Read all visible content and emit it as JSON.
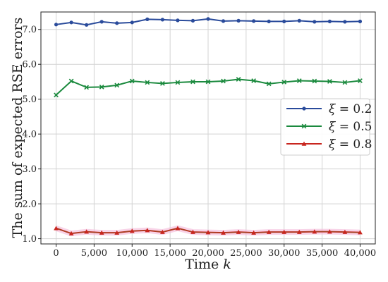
{
  "chart_data": {
    "type": "line",
    "xlabel": "Time k",
    "ylabel": "The sum of expected RSE errors",
    "xlim": [
      -2000,
      42000
    ],
    "ylim": [
      0.85,
      7.5
    ],
    "grid": true,
    "legend_position": "center-right",
    "x": [
      0,
      2000,
      4000,
      6000,
      8000,
      10000,
      12000,
      14000,
      16000,
      18000,
      20000,
      22000,
      24000,
      26000,
      28000,
      30000,
      32000,
      34000,
      36000,
      38000,
      40000
    ],
    "x_ticks": [
      0,
      5000,
      10000,
      15000,
      20000,
      25000,
      30000,
      35000,
      40000
    ],
    "x_tick_labels": [
      "0",
      "5,000",
      "10,000",
      "15,000",
      "20,000",
      "25,000",
      "30,000",
      "35,000",
      "40,000"
    ],
    "y_ticks": [
      1.0,
      2.0,
      3.0,
      4.0,
      5.0,
      6.0,
      7.0
    ],
    "y_tick_labels": [
      "1.0",
      "2.0",
      "3.0",
      "4.0",
      "5.0",
      "6.0",
      "7.0"
    ],
    "series": [
      {
        "name": "ξ = 0.2",
        "color": "#2a4b9b",
        "marker": "circle",
        "values": [
          7.14,
          7.2,
          7.13,
          7.22,
          7.18,
          7.2,
          7.29,
          7.28,
          7.26,
          7.25,
          7.3,
          7.24,
          7.25,
          7.24,
          7.23,
          7.23,
          7.25,
          7.22,
          7.23,
          7.22,
          7.23
        ]
      },
      {
        "name": "ξ = 0.5",
        "color": "#1b8a3e",
        "marker": "x",
        "values": [
          5.12,
          5.52,
          5.34,
          5.35,
          5.4,
          5.52,
          5.48,
          5.45,
          5.48,
          5.5,
          5.5,
          5.52,
          5.57,
          5.53,
          5.44,
          5.49,
          5.53,
          5.52,
          5.51,
          5.48,
          5.53
        ]
      },
      {
        "name": "ξ = 0.8",
        "color": "#c8261f",
        "marker": "triangle",
        "values": [
          1.3,
          1.15,
          1.2,
          1.17,
          1.17,
          1.22,
          1.24,
          1.19,
          1.3,
          1.19,
          1.18,
          1.17,
          1.19,
          1.17,
          1.19,
          1.19,
          1.19,
          1.2,
          1.2,
          1.19,
          1.18
        ]
      }
    ]
  }
}
